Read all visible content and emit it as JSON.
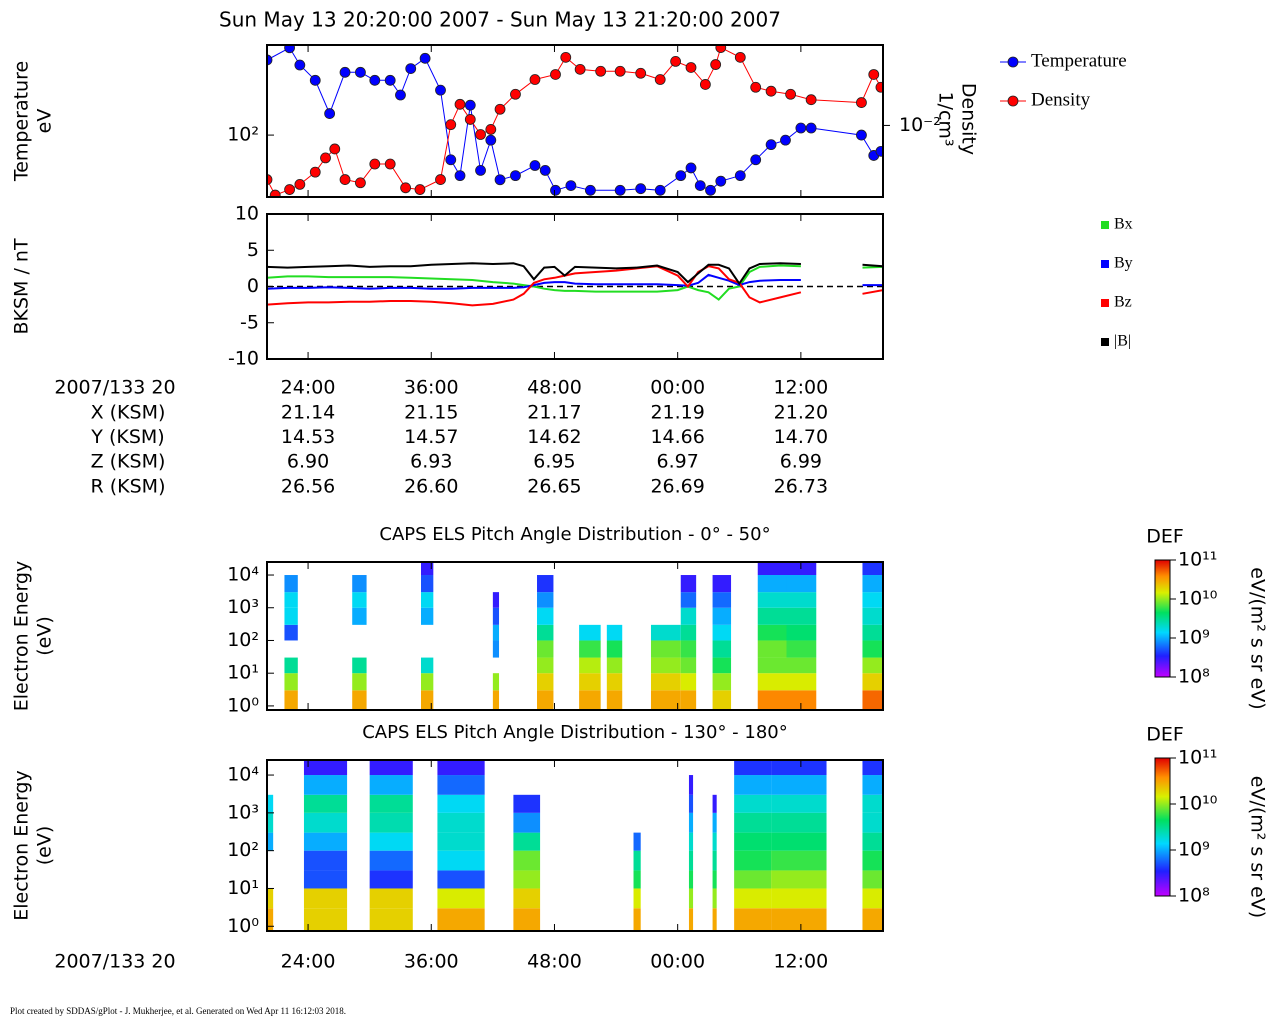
{
  "title": "Sun May 13 20:20:00 2007 - Sun May 13 21:20:00 2007",
  "footer": "Plot created by SDDAS/gPlot - J. Mukherjee, et al.  Generated on Wed Apr 11 16:12:03 2018.",
  "ephemeris": {
    "time_label": "2007/133 20",
    "rows": [
      {
        "label": "X (KSM)",
        "values": [
          "21.14",
          "21.15",
          "21.17",
          "21.19",
          "21.20"
        ]
      },
      {
        "label": "Y (KSM)",
        "values": [
          "14.53",
          "14.57",
          "14.62",
          "14.66",
          "14.70"
        ]
      },
      {
        "label": "Z (KSM)",
        "values": [
          "6.90",
          "6.93",
          "6.95",
          "6.97",
          "6.99"
        ]
      },
      {
        "label": "R (KSM)",
        "values": [
          "26.56",
          "26.60",
          "26.65",
          "26.69",
          "26.73"
        ]
      }
    ]
  },
  "chart_data": [
    {
      "type": "line",
      "markers": true,
      "log_y": true,
      "legend": "outside right",
      "ylabel": [
        "Temperature",
        "eV"
      ],
      "y2label": [
        "Density",
        "1/cm³"
      ],
      "xlim": [
        20,
        80
      ],
      "xticks": [
        {
          "value": 24,
          "label": "24:00"
        },
        {
          "value": 36,
          "label": "36:00"
        },
        {
          "value": 48,
          "label": "48:00"
        },
        {
          "value": 60,
          "label": "00:00"
        },
        {
          "value": 72,
          "label": "12:00"
        }
      ],
      "ylim": [
        47,
        300
      ],
      "yticks": [
        {
          "value": 100,
          "label": "10²"
        }
      ],
      "y2lim": [
        0.004,
        0.028
      ],
      "y2ticks": [
        {
          "value": 0.01,
          "label": "10⁻²"
        }
      ],
      "series": [
        {
          "name": "Temperature",
          "color": "#0000ff",
          "x": [
            20.0,
            22.2,
            23.2,
            24.7,
            26.1,
            27.6,
            29.1,
            30.5,
            32.0,
            33.0,
            34.0,
            35.4,
            36.9,
            37.9,
            38.8,
            39.8,
            40.8,
            41.8,
            42.7,
            44.2,
            46.1,
            47.1,
            48.1,
            49.6,
            51.5,
            54.4,
            56.4,
            58.3,
            60.3,
            61.3,
            62.2,
            63.2,
            64.2,
            66.1,
            67.6,
            69.1,
            70.5,
            72.0,
            73.0,
            77.9,
            79.1,
            79.8
          ],
          "values": [
            250,
            290,
            235,
            195,
            130,
            215,
            215,
            195,
            195,
            163,
            225,
            255,
            173,
            74,
            61,
            144,
            65,
            94,
            58,
            61,
            69,
            65,
            51,
            54,
            51,
            51,
            52,
            51,
            61,
            67,
            54,
            51,
            57,
            61,
            74,
            89,
            94,
            109,
            109,
            100,
            78,
            82
          ]
        },
        {
          "name": "Density",
          "color": "#ff0000",
          "axis": "y2",
          "x": [
            20.0,
            20.8,
            22.2,
            23.2,
            24.7,
            25.7,
            26.6,
            27.6,
            29.1,
            30.5,
            32.0,
            33.5,
            34.9,
            36.9,
            37.9,
            38.8,
            39.8,
            40.8,
            41.8,
            42.7,
            44.2,
            46.1,
            48.1,
            49.1,
            50.5,
            52.5,
            54.4,
            56.4,
            58.3,
            59.8,
            61.3,
            62.7,
            63.7,
            64.2,
            66.1,
            67.6,
            69.1,
            71.0,
            73.0,
            77.9,
            79.1,
            79.8
          ],
          "values": [
            0.005,
            0.0041,
            0.0044,
            0.0047,
            0.0055,
            0.0066,
            0.0074,
            0.005,
            0.0048,
            0.0061,
            0.0061,
            0.0045,
            0.0044,
            0.005,
            0.0101,
            0.0131,
            0.0108,
            0.0089,
            0.0095,
            0.0123,
            0.0149,
            0.018,
            0.0192,
            0.0239,
            0.0205,
            0.02,
            0.02,
            0.0195,
            0.018,
            0.0227,
            0.021,
            0.0169,
            0.0218,
            0.0271,
            0.0239,
            0.0163,
            0.0155,
            0.0149,
            0.0139,
            0.0134,
            0.0192,
            0.0163
          ]
        }
      ]
    },
    {
      "type": "line",
      "markers": false,
      "log_y": false,
      "legend": "outside right",
      "zero_line": true,
      "ylabel": [
        "BKSM / nT"
      ],
      "xlim": [
        20,
        80
      ],
      "xticks": [
        {
          "value": 24,
          "label": "24:00"
        },
        {
          "value": 36,
          "label": "36:00"
        },
        {
          "value": 48,
          "label": "48:00"
        },
        {
          "value": 60,
          "label": "00:00"
        },
        {
          "value": 72,
          "label": "12:00"
        }
      ],
      "ylim": [
        -10,
        10
      ],
      "yticks": [
        -10,
        -5,
        0,
        5,
        10
      ],
      "x": [
        20,
        22,
        24,
        26,
        28,
        30,
        32,
        34,
        36,
        38,
        40,
        42,
        44,
        45,
        46,
        47,
        48,
        49,
        50,
        52,
        54,
        56,
        58,
        60,
        61,
        62,
        63,
        64,
        65,
        66,
        67,
        68,
        70,
        72,
        75,
        78,
        80
      ],
      "series": [
        {
          "name": "Bx",
          "color": "#22dd22",
          "values": [
            1.2,
            1.4,
            1.4,
            1.3,
            1.3,
            1.3,
            1.3,
            1.2,
            1.1,
            1.0,
            0.9,
            0.6,
            0.4,
            0.2,
            0.0,
            -0.3,
            -0.5,
            -0.6,
            -0.6,
            -0.7,
            -0.7,
            -0.7,
            -0.7,
            -0.5,
            0.0,
            -0.5,
            -0.8,
            -1.8,
            -0.3,
            0.0,
            2.0,
            2.7,
            2.9,
            2.8,
            null,
            2.6,
            2.7
          ]
        },
        {
          "name": "By",
          "color": "#0000ff",
          "values": [
            -0.3,
            -0.2,
            -0.2,
            -0.1,
            -0.2,
            -0.3,
            -0.2,
            -0.2,
            -0.3,
            -0.3,
            -0.2,
            -0.2,
            -0.2,
            -0.1,
            0.2,
            0.5,
            0.6,
            0.6,
            0.4,
            0.3,
            0.3,
            0.3,
            0.3,
            0.2,
            0.1,
            0.5,
            1.6,
            1.2,
            0.8,
            0.2,
            0.6,
            0.8,
            0.9,
            0.9,
            null,
            0.2,
            0.2
          ]
        },
        {
          "name": "Bz",
          "color": "#ff0000",
          "values": [
            -2.5,
            -2.3,
            -2.2,
            -2.2,
            -2.1,
            -2.1,
            -2.0,
            -2.0,
            -2.1,
            -2.3,
            -2.6,
            -2.4,
            -1.8,
            -1.0,
            0.5,
            1.0,
            1.2,
            1.5,
            1.8,
            2.0,
            2.2,
            2.5,
            2.8,
            1.5,
            0.0,
            2.0,
            2.8,
            2.5,
            1.0,
            0.5,
            -1.5,
            -2.2,
            -1.5,
            -0.8,
            null,
            -1.0,
            -0.5
          ]
        },
        {
          "name": "|B|",
          "color": "#000000",
          "values": [
            2.7,
            2.6,
            2.7,
            2.8,
            2.9,
            2.7,
            2.8,
            2.8,
            3.0,
            3.1,
            3.2,
            3.1,
            3.2,
            2.8,
            1.0,
            2.6,
            2.7,
            1.5,
            2.7,
            2.6,
            2.5,
            2.6,
            2.9,
            2.0,
            0.6,
            1.8,
            3.0,
            3.0,
            2.5,
            0.4,
            2.5,
            3.1,
            3.2,
            3.1,
            null,
            3.0,
            2.8
          ]
        }
      ]
    },
    {
      "type": "heatmap",
      "title": "CAPS ELS Pitch Angle Distribution - 0° - 50°",
      "ylabel": [
        "Electron Energy",
        "(eV)"
      ],
      "log_y": true,
      "xlim": [
        20,
        80
      ],
      "xticks": [
        {
          "value": 24,
          "label": "24:00"
        },
        {
          "value": 36,
          "label": "36:00"
        },
        {
          "value": 48,
          "label": "48:00"
        },
        {
          "value": 60,
          "label": "00:00"
        },
        {
          "value": 72,
          "label": "12:00"
        }
      ],
      "ylim": [
        0.75,
        25000
      ],
      "yticks": [
        {
          "value": 1,
          "label": "10⁰"
        },
        {
          "value": 10,
          "label": "10¹"
        },
        {
          "value": 100,
          "label": "10²"
        },
        {
          "value": 1000,
          "label": "10³"
        },
        {
          "value": 10000,
          "label": "10⁴"
        }
      ],
      "x_edges": [
        21.7,
        23.0,
        28.3,
        29.7,
        35.0,
        36.2,
        42.0,
        42.6,
        46.3,
        47.9,
        50.4,
        52.5,
        53.1,
        54.6,
        57.4,
        60.3,
        61.8,
        63.4,
        65.2,
        67.8,
        70.6,
        73.5,
        78.0,
        80.0
      ],
      "bins": [
        0.75,
        3,
        10,
        30,
        100,
        300,
        1000,
        3000,
        10000,
        25000
      ],
      "z": [
        [
          30000000000.0,
          10000000000.0,
          3000000000.0,
          null,
          500000000.0,
          1500000000.0,
          1500000000.0,
          800000000.0,
          null
        ],
        null,
        [
          30000000000.0,
          10000000000.0,
          3000000000.0,
          null,
          null,
          1000000000.0,
          1500000000.0,
          800000000.0,
          null
        ],
        null,
        [
          30000000000.0,
          10000000000.0,
          2000000000.0,
          null,
          null,
          1000000000.0,
          1500000000.0,
          500000000.0,
          300000000.0
        ],
        null,
        [
          30000000000.0,
          10000000000.0,
          null,
          800000000.0,
          1000000000.0,
          500000000.0,
          300000000.0,
          null,
          null
        ],
        null,
        [
          30000000000.0,
          20000000000.0,
          10000000000.0,
          8000000000.0,
          3000000000.0,
          1500000000.0,
          800000000.0,
          400000000.0,
          null
        ],
        null,
        [
          30000000000.0,
          20000000000.0,
          12000000000.0,
          6000000000.0,
          1500000000.0,
          null,
          null,
          null,
          null
        ],
        null,
        [
          30000000000.0,
          20000000000.0,
          10000000000.0,
          5000000000.0,
          1500000000.0,
          null,
          null,
          null,
          null
        ],
        null,
        [
          30000000000.0,
          20000000000.0,
          10000000000.0,
          8000000000.0,
          2000000000.0,
          null,
          null,
          null,
          null
        ],
        [
          30000000000.0,
          15000000000.0,
          8000000000.0,
          6000000000.0,
          3000000000.0,
          2000000000.0,
          600000000.0,
          300000000.0,
          null
        ],
        null,
        [
          20000000000.0,
          10000000000.0,
          5000000000.0,
          3000000000.0,
          1500000000.0,
          1000000000.0,
          600000000.0,
          300000000.0,
          null
        ],
        null,
        [
          40000000000.0,
          15000000000.0,
          8000000000.0,
          8000000000.0,
          5000000000.0,
          3000000000.0,
          2000000000.0,
          1000000000.0,
          300000000.0
        ],
        [
          40000000000.0,
          15000000000.0,
          8000000000.0,
          6000000000.0,
          4000000000.0,
          3000000000.0,
          2000000000.0,
          1000000000.0,
          300000000.0
        ],
        null,
        [
          50000000000.0,
          20000000000.0,
          10000000000.0,
          5000000000.0,
          3000000000.0,
          2000000000.0,
          1500000000.0,
          1000000000.0,
          400000000.0
        ]
      ],
      "colorbar": {
        "title": "DEF",
        "label": "eV/(m² s sr eV)",
        "lim": [
          100000000.0,
          100000000000.0
        ],
        "ticks": [
          {
            "value": 100000000.0,
            "label": "10⁸"
          },
          {
            "value": 1000000000.0,
            "label": "10⁹"
          },
          {
            "value": 10000000000.0,
            "label": "10¹⁰"
          },
          {
            "value": 100000000000.0,
            "label": "10¹¹"
          }
        ]
      }
    },
    {
      "type": "heatmap",
      "title": "CAPS ELS Pitch Angle Distribution - 130° - 180°",
      "ylabel": [
        "Electron Energy",
        "(eV)"
      ],
      "log_y": true,
      "xlim": [
        20,
        80
      ],
      "xticks": [
        {
          "value": 24,
          "label": "24:00"
        },
        {
          "value": 36,
          "label": "36:00"
        },
        {
          "value": 48,
          "label": "48:00"
        },
        {
          "value": 60,
          "label": "00:00"
        },
        {
          "value": 72,
          "label": "12:00"
        }
      ],
      "ylim": [
        0.75,
        25000
      ],
      "yticks": [
        {
          "value": 1,
          "label": "10⁰"
        },
        {
          "value": 10,
          "label": "10¹"
        },
        {
          "value": 100,
          "label": "10²"
        },
        {
          "value": 1000,
          "label": "10³"
        },
        {
          "value": 10000,
          "label": "10⁴"
        }
      ],
      "x_edges": [
        20.0,
        20.6,
        23.6,
        27.8,
        30.0,
        34.2,
        36.6,
        41.2,
        44.0,
        46.6,
        55.7,
        56.4,
        61.1,
        61.5,
        63.4,
        63.8,
        65.5,
        69.1,
        74.5,
        78.0,
        80.0
      ],
      "bins": [
        0.75,
        3,
        10,
        30,
        100,
        300,
        1000,
        3000,
        10000,
        25000
      ],
      "z": [
        [
          30000000000.0,
          20000000000.0,
          null,
          null,
          1000000000.0,
          2000000000.0,
          1500000000.0,
          null,
          null
        ],
        null,
        [
          20000000000.0,
          20000000000.0,
          500000000.0,
          500000000.0,
          1000000000.0,
          2000000000.0,
          3000000000.0,
          1000000000.0,
          300000000.0
        ],
        null,
        [
          20000000000.0,
          20000000000.0,
          400000000.0,
          600000000.0,
          1500000000.0,
          2500000000.0,
          3000000000.0,
          1000000000.0,
          300000000.0
        ],
        null,
        [
          30000000000.0,
          15000000000.0,
          500000000.0,
          1500000000.0,
          2000000000.0,
          2000000000.0,
          1500000000.0,
          600000000.0,
          300000000.0
        ],
        null,
        [
          30000000000.0,
          20000000000.0,
          10000000000.0,
          8000000000.0,
          3000000000.0,
          800000000.0,
          400000000.0,
          null,
          null
        ],
        null,
        [
          30000000000.0,
          15000000000.0,
          5000000000.0,
          3000000000.0,
          600000000.0,
          null,
          null,
          null,
          null
        ],
        null,
        [
          30000000000.0,
          10000000000.0,
          5000000000.0,
          3000000000.0,
          2000000000.0,
          1000000000.0,
          500000000.0,
          300000000.0,
          null
        ],
        null,
        [
          30000000000.0,
          10000000000.0,
          5000000000.0,
          3000000000.0,
          2000000000.0,
          1000000000.0,
          300000000.0,
          null,
          null
        ],
        null,
        [
          30000000000.0,
          15000000000.0,
          8000000000.0,
          5000000000.0,
          4000000000.0,
          3000000000.0,
          2000000000.0,
          1000000000.0,
          400000000.0
        ],
        [
          30000000000.0,
          15000000000.0,
          10000000000.0,
          6000000000.0,
          4000000000.0,
          3000000000.0,
          2000000000.0,
          1000000000.0,
          400000000.0
        ],
        null,
        [
          30000000000.0,
          15000000000.0,
          8000000000.0,
          5000000000.0,
          3000000000.0,
          2000000000.0,
          2000000000.0,
          1000000000.0,
          400000000.0
        ]
      ],
      "colorbar": {
        "title": "DEF",
        "label": "eV/(m² s sr eV)",
        "lim": [
          100000000.0,
          100000000000.0
        ],
        "ticks": [
          {
            "value": 100000000.0,
            "label": "10⁸"
          },
          {
            "value": 1000000000.0,
            "label": "10⁹"
          },
          {
            "value": 10000000000.0,
            "label": "10¹⁰"
          },
          {
            "value": 100000000000.0,
            "label": "10¹¹"
          }
        ]
      }
    }
  ]
}
